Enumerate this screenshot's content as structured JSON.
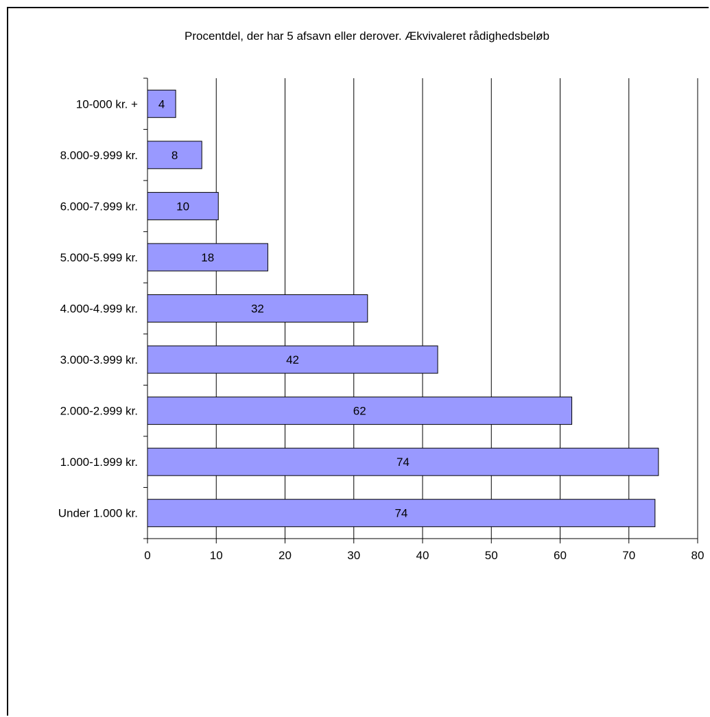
{
  "chart_data": {
    "type": "bar",
    "orientation": "horizontal",
    "title": "Procentdel, der har 5 afsavn eller derover. Ækvivaleret rådighedsbeløb",
    "xlabel": "",
    "ylabel": "",
    "categories": [
      "10-000 kr. +",
      "8.000-9.999 kr.",
      "6.000-7.999 kr.",
      "5.000-5.999 kr.",
      "4.000-4.999 kr.",
      "3.000-3.999 kr.",
      "2.000-2.999 kr.",
      "1.000-1.999 kr.",
      "Under 1.000 kr."
    ],
    "values": [
      4.1,
      7.9,
      10.3,
      17.5,
      32.0,
      42.2,
      61.7,
      74.3,
      73.8
    ],
    "data_labels": [
      "4",
      "8",
      "10",
      "18",
      "32",
      "42",
      "62",
      "74",
      "74"
    ],
    "xlim": [
      0,
      80
    ],
    "xticks": [
      0,
      10,
      20,
      30,
      40,
      50,
      60,
      70,
      80
    ],
    "grid": "vertical",
    "legend": "none",
    "bar_color": "#9999ff",
    "bar_edge_color": "#000000"
  }
}
